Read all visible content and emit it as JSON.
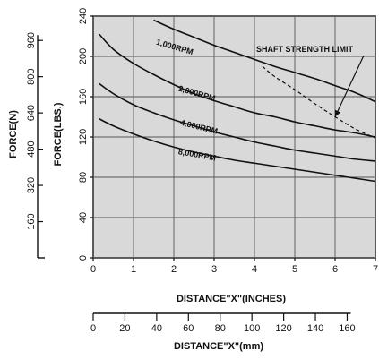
{
  "chart_data": {
    "type": "line",
    "xlabel": "DISTANCE\"X\"(INCHES)",
    "ylabel": "FORCE(LBS.)",
    "x_ticks": [
      "0",
      "1",
      "2",
      "3",
      "4",
      "5",
      "6",
      "7"
    ],
    "y_ticks": [
      "0",
      "40",
      "80",
      "120",
      "160",
      "200",
      "240"
    ],
    "xlim": [
      0,
      7
    ],
    "ylim": [
      0,
      240
    ],
    "grid": true,
    "secondary_x_axis": {
      "label": "DISTANCE\"X\"(mm)",
      "ticks": [
        "0",
        "20",
        "40",
        "60",
        "80",
        "100",
        "120",
        "140",
        "160"
      ]
    },
    "secondary_y_axis": {
      "label": "FORCE(N)",
      "ticks": [
        "160",
        "320",
        "480",
        "640",
        "800",
        "960"
      ]
    },
    "series": [
      {
        "name": "1,000RPM",
        "x": [
          1.5,
          2,
          2.5,
          3,
          3.5,
          4,
          4.5,
          5,
          5.5,
          6,
          6.5,
          7
        ],
        "y": [
          236,
          227,
          219,
          211,
          204,
          197,
          190,
          184,
          178,
          171,
          164,
          155
        ]
      },
      {
        "name": "2,000RPM",
        "x": [
          0.15,
          0.5,
          1,
          1.5,
          2,
          2.5,
          3,
          3.5,
          4,
          4.5,
          5,
          5.5,
          6,
          6.5,
          7
        ],
        "y": [
          222,
          207,
          193,
          182,
          172,
          163,
          156,
          150,
          144,
          140,
          135,
          131,
          127,
          124,
          120
        ]
      },
      {
        "name": "4,000RPM",
        "x": [
          0.15,
          0.5,
          1,
          1.5,
          2,
          2.5,
          3,
          3.5,
          4,
          4.5,
          5,
          5.5,
          6,
          6.5,
          7
        ],
        "y": [
          173,
          163,
          152,
          144,
          137,
          131,
          125,
          120,
          115,
          111,
          107,
          104,
          101,
          98,
          96
        ]
      },
      {
        "name": "8,000RPM",
        "x": [
          0.15,
          0.5,
          1,
          1.5,
          2,
          2.5,
          3,
          3.5,
          4,
          4.5,
          5,
          5.5,
          6,
          6.5,
          7
        ],
        "y": [
          138,
          131,
          123,
          116,
          110,
          105,
          101,
          97,
          94,
          91,
          88,
          85,
          82,
          79,
          76
        ]
      },
      {
        "name": "SHAFT STRENGTH LIMIT",
        "style": "dashed",
        "x": [
          4.2,
          4.5,
          5,
          5.5,
          6,
          6.5,
          7
        ],
        "y": [
          190,
          180,
          167,
          153,
          140,
          128,
          119
        ]
      }
    ],
    "annotation": "SHAFT STRENGTH LIMIT"
  }
}
